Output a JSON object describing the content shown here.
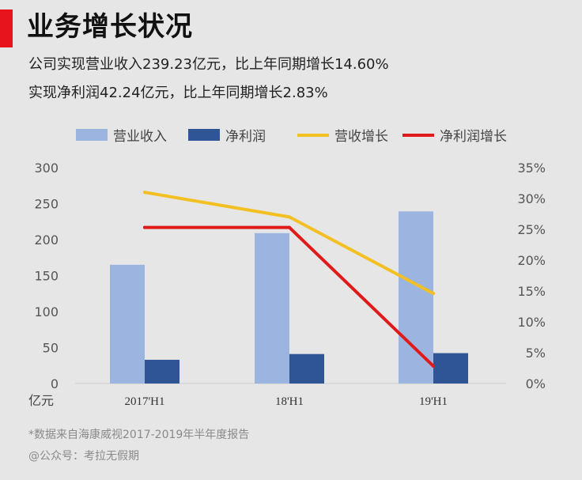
{
  "header": {
    "title": "业务增长状况",
    "subtitle_1": "公司实现营业收入239.23亿元，比上年同期增长14.60%",
    "subtitle_2": "实现净利润42.24亿元，比上年同期增长2.83%"
  },
  "footer": {
    "source": "*数据来自海康威视2017-2019年半年度报告",
    "account": "@公众号：考拉无假期"
  },
  "colors": {
    "accent": "#e8141b",
    "revenue_bar": "#9bb4e0",
    "profit_bar": "#2f5597",
    "revenue_growth_line": "#f3c024",
    "profit_growth_line": "#e01a1a"
  },
  "chart_data": {
    "type": "bar",
    "categories": [
      "2017'H1",
      "18'H1",
      "19'H1"
    ],
    "series": [
      {
        "name": "营业收入",
        "kind": "bar",
        "axis": "left",
        "values": [
          165,
          209,
          239.23
        ]
      },
      {
        "name": "净利润",
        "kind": "bar",
        "axis": "left",
        "values": [
          33,
          41,
          42.24
        ]
      },
      {
        "name": "营收增长",
        "kind": "line",
        "axis": "right",
        "values": [
          31,
          27,
          14.6
        ]
      },
      {
        "name": "净利润增长",
        "kind": "line",
        "axis": "right",
        "values": [
          25.3,
          25.3,
          2.83
        ]
      }
    ],
    "ylabel": "亿元",
    "ylim": [
      0,
      300
    ],
    "y_ticks": [
      "0",
      "50",
      "100",
      "150",
      "200",
      "250",
      "300"
    ],
    "y2lim": [
      0,
      35
    ],
    "y2_ticks": [
      "0%",
      "5%",
      "10%",
      "15%",
      "20%",
      "25%",
      "30%",
      "35%"
    ],
    "legend_position": "top",
    "grid": false
  }
}
